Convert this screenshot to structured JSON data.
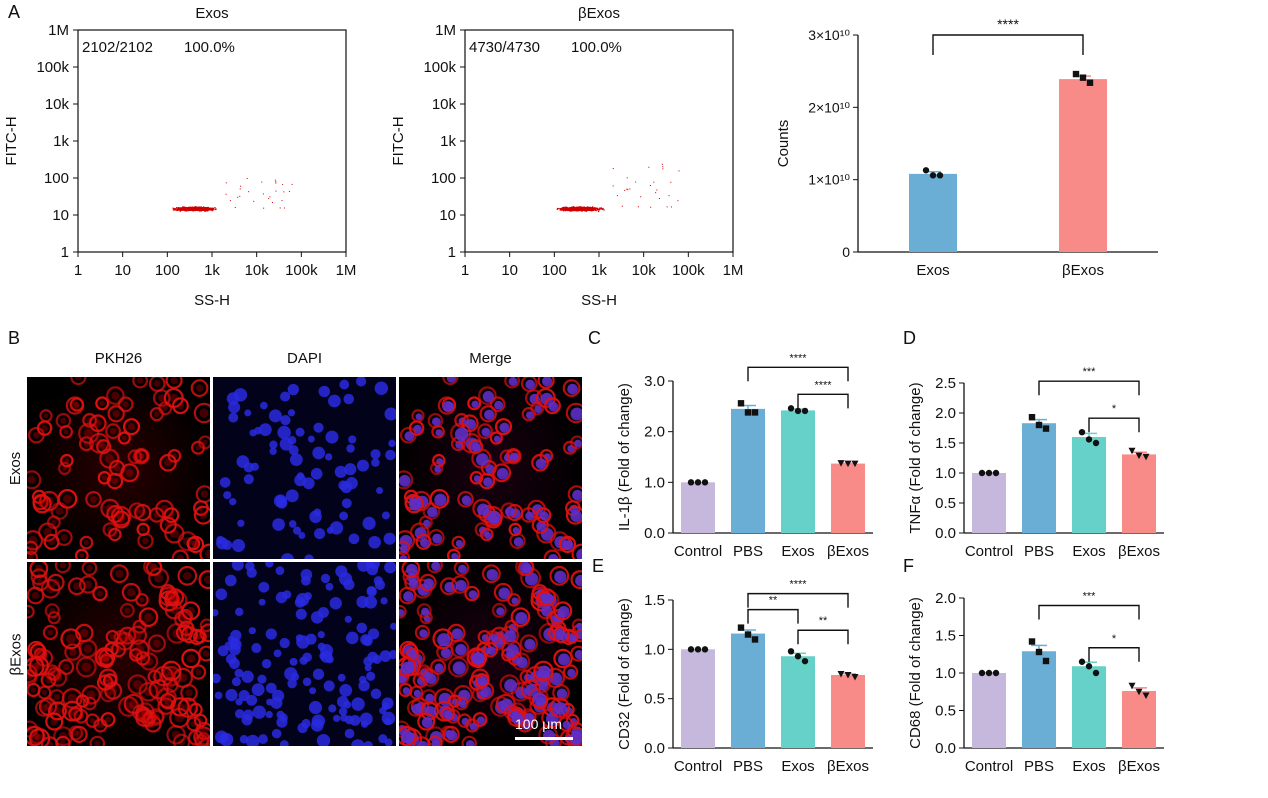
{
  "panel_letters": {
    "A": "A",
    "B": "B",
    "C": "C",
    "D": "D",
    "E": "E",
    "F": "F"
  },
  "flow": [
    {
      "title": "Exos",
      "count_text": "2102/2102",
      "pct_text": "100.0%",
      "xlabel": "SS-H",
      "ylabel": "FITC-H",
      "ticks": [
        "1",
        "10",
        "100",
        "1k",
        "10k",
        "100k",
        "1M"
      ],
      "events_color": "#d00000"
    },
    {
      "title": "βExos",
      "count_text": "4730/4730",
      "pct_text": "100.0%",
      "xlabel": "SS-H",
      "ylabel": "FITC-H",
      "ticks": [
        "1",
        "10",
        "100",
        "1k",
        "10k",
        "100k",
        "1M"
      ],
      "events_color": "#d00000"
    }
  ],
  "colors": {
    "control": "#c5b8dc",
    "pbs": "#6aaed6",
    "exos": "#66d1c8",
    "bexos": "#f88a88",
    "exos_blue": "#6aaed6",
    "scatter": "#d00000"
  },
  "micro": {
    "headers": [
      "PKH26",
      "DAPI",
      "Merge"
    ],
    "rows": [
      "Exos",
      "βExos"
    ],
    "scale_text": "100 μm"
  },
  "chart_data": [
    {
      "id": "A-counts",
      "type": "bar",
      "categories": [
        "Exos",
        "βExos"
      ],
      "values": [
        10800000000.0,
        23900000000.0
      ],
      "points": [
        [
          11300000000.0,
          10600000000.0,
          10600000000.0
        ],
        [
          24600000000.0,
          24100000000.0,
          23400000000.0
        ]
      ],
      "ylabel": "Counts",
      "ylim": [
        0,
        30000000000.0
      ],
      "yticks": [
        {
          "v": 0,
          "label": "0"
        },
        {
          "v": 10000000000.0,
          "label": "1×10¹⁰"
        },
        {
          "v": 20000000000.0,
          "label": "2×10¹⁰"
        },
        {
          "v": 30000000000.0,
          "label": "3×10¹⁰"
        }
      ],
      "sig": [
        {
          "from": 0,
          "to": 1,
          "label": "****"
        }
      ]
    },
    {
      "id": "C",
      "type": "bar",
      "categories": [
        "Control",
        "PBS",
        "Exos",
        "βExos"
      ],
      "values": [
        1.0,
        2.45,
        2.42,
        1.37
      ],
      "points": [
        [
          1.0,
          1.0,
          1.0
        ],
        [
          2.56,
          2.38,
          2.38
        ],
        [
          2.46,
          2.41,
          2.41
        ],
        [
          1.38,
          1.37,
          1.37
        ]
      ],
      "ylabel": "IL-1β (Fold of change)",
      "ylim": [
        0,
        3.0
      ],
      "yticks": [
        {
          "v": 0,
          "label": "0.0"
        },
        {
          "v": 1,
          "label": "1.0"
        },
        {
          "v": 2,
          "label": "2.0"
        },
        {
          "v": 3,
          "label": "3.0"
        }
      ],
      "sig": [
        {
          "from": 1,
          "to": 3,
          "label": "****"
        },
        {
          "from": 2,
          "to": 3,
          "label": "****"
        }
      ]
    },
    {
      "id": "D",
      "type": "bar",
      "categories": [
        "Control",
        "PBS",
        "Exos",
        "βExos"
      ],
      "values": [
        1.0,
        1.83,
        1.6,
        1.31
      ],
      "points": [
        [
          1.0,
          1.0,
          1.0
        ],
        [
          1.93,
          1.8,
          1.74
        ],
        [
          1.68,
          1.56,
          1.5
        ],
        [
          1.37,
          1.29,
          1.27
        ]
      ],
      "ylabel": "TNFα (Fold of change)",
      "ylim": [
        0,
        2.5
      ],
      "yticks": [
        {
          "v": 0,
          "label": "0.0"
        },
        {
          "v": 0.5,
          "label": "0.5"
        },
        {
          "v": 1,
          "label": "1.0"
        },
        {
          "v": 1.5,
          "label": "1.5"
        },
        {
          "v": 2,
          "label": "2.0"
        },
        {
          "v": 2.5,
          "label": "2.5"
        }
      ],
      "sig": [
        {
          "from": 1,
          "to": 3,
          "label": "***"
        },
        {
          "from": 2,
          "to": 3,
          "label": "*"
        }
      ]
    },
    {
      "id": "E",
      "type": "bar",
      "categories": [
        "Control",
        "PBS",
        "Exos",
        "βExos"
      ],
      "values": [
        1.0,
        1.16,
        0.93,
        0.74
      ],
      "points": [
        [
          1.0,
          1.0,
          1.0
        ],
        [
          1.22,
          1.15,
          1.1
        ],
        [
          0.98,
          0.93,
          0.88
        ],
        [
          0.75,
          0.74,
          0.72
        ]
      ],
      "ylabel": "CD32 (Fold of change)",
      "ylim": [
        0,
        1.5
      ],
      "yticks": [
        {
          "v": 0,
          "label": "0.0"
        },
        {
          "v": 0.5,
          "label": "0.5"
        },
        {
          "v": 1,
          "label": "1.0"
        },
        {
          "v": 1.5,
          "label": "1.5"
        }
      ],
      "sig": [
        {
          "from": 1,
          "to": 3,
          "label": "****"
        },
        {
          "from": 1,
          "to": 2,
          "label": "**"
        },
        {
          "from": 2,
          "to": 3,
          "label": "**"
        }
      ]
    },
    {
      "id": "F",
      "type": "bar",
      "categories": [
        "Control",
        "PBS",
        "Exos",
        "βExos"
      ],
      "values": [
        1.0,
        1.29,
        1.09,
        0.76
      ],
      "points": [
        [
          1.0,
          1.0,
          1.0
        ],
        [
          1.42,
          1.28,
          1.16
        ],
        [
          1.15,
          1.09,
          1.0
        ],
        [
          0.83,
          0.75,
          0.7
        ]
      ],
      "ylabel": "CD68 (Fold of change)",
      "ylim": [
        0,
        2.0
      ],
      "yticks": [
        {
          "v": 0,
          "label": "0.0"
        },
        {
          "v": 0.5,
          "label": "0.5"
        },
        {
          "v": 1,
          "label": "1.0"
        },
        {
          "v": 1.5,
          "label": "1.5"
        },
        {
          "v": 2,
          "label": "2.0"
        }
      ],
      "sig": [
        {
          "from": 1,
          "to": 3,
          "label": "***"
        },
        {
          "from": 2,
          "to": 3,
          "label": "*"
        }
      ]
    }
  ]
}
